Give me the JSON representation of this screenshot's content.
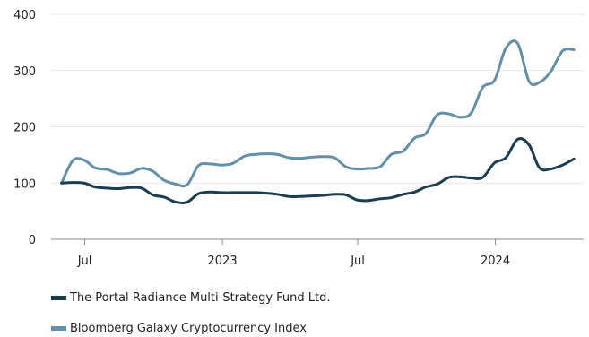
{
  "chart_data": {
    "type": "line",
    "title": "",
    "xlabel": "",
    "ylabel": "",
    "ylim": [
      0,
      400
    ],
    "yticks": [
      0,
      100,
      200,
      300,
      400
    ],
    "xlim": [
      "2022-05-17",
      "2024-04-28"
    ],
    "xticks": [
      {
        "date": "2022-07-01",
        "label": "Jul"
      },
      {
        "date": "2023-01-01",
        "label": "2023"
      },
      {
        "date": "2023-07-01",
        "label": "Jul"
      },
      {
        "date": "2024-01-01",
        "label": "2024"
      }
    ],
    "grid": true,
    "legend_position": "bottom-left",
    "x": [
      "2022-05-31",
      "2022-06-15",
      "2022-06-30",
      "2022-07-15",
      "2022-07-31",
      "2022-08-15",
      "2022-08-31",
      "2022-09-15",
      "2022-09-30",
      "2022-10-15",
      "2022-10-31",
      "2022-11-15",
      "2022-11-30",
      "2022-12-15",
      "2022-12-31",
      "2023-01-15",
      "2023-01-31",
      "2023-02-15",
      "2023-02-28",
      "2023-03-15",
      "2023-03-31",
      "2023-04-15",
      "2023-04-30",
      "2023-05-15",
      "2023-05-31",
      "2023-06-15",
      "2023-06-30",
      "2023-07-15",
      "2023-07-31",
      "2023-08-15",
      "2023-08-31",
      "2023-09-15",
      "2023-09-30",
      "2023-10-15",
      "2023-10-31",
      "2023-11-15",
      "2023-11-30",
      "2023-12-15",
      "2023-12-31",
      "2024-01-15",
      "2024-01-31",
      "2024-02-15",
      "2024-02-29",
      "2024-03-15",
      "2024-03-31",
      "2024-04-15"
    ],
    "series": [
      {
        "name": "The Portal Radiance Multi-Strategy Fund Ltd.",
        "color": "#1b3d4f",
        "values": [
          100,
          101,
          100,
          93,
          91,
          90,
          92,
          91,
          79,
          75,
          66,
          66,
          81,
          84,
          83,
          83,
          83,
          83,
          82,
          80,
          76,
          76,
          77,
          78,
          80,
          79,
          70,
          69,
          72,
          74,
          80,
          84,
          93,
          98,
          110,
          111,
          109,
          110,
          136,
          145,
          178,
          168,
          127,
          125,
          132,
          143
        ]
      },
      {
        "name": "Bloomberg Galaxy Cryptocurrency Index",
        "color": "#6390a8",
        "values": [
          100,
          140,
          141,
          127,
          124,
          117,
          118,
          126,
          121,
          105,
          98,
          97,
          131,
          134,
          132,
          135,
          148,
          151,
          152,
          151,
          145,
          144,
          146,
          147,
          145,
          129,
          125,
          126,
          129,
          151,
          157,
          180,
          188,
          221,
          223,
          217,
          225,
          270,
          283,
          340,
          348,
          281,
          279,
          298,
          335,
          337
        ]
      }
    ]
  }
}
